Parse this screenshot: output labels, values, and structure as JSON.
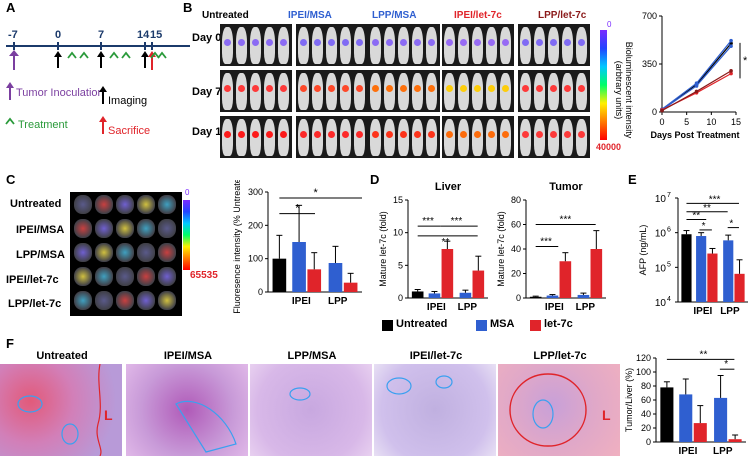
{
  "panel_labels": {
    "a": "A",
    "b": "B",
    "c": "C",
    "d": "D",
    "e": "E",
    "f": "F"
  },
  "panelA": {
    "ticks": [
      "-7",
      "0",
      "7",
      "14",
      "15"
    ],
    "legend": {
      "tumor": "Tumor Inoculation",
      "treatment": "Treatment",
      "imaging": "Imaging",
      "sacrifice": "Sacrifice"
    },
    "colors": {
      "tumor": "#7b3fa0",
      "treatment": "#2a9a3a",
      "imaging": "#000000",
      "sacrifice": "#e0242a"
    }
  },
  "panelB": {
    "groups": [
      "Untreated",
      "IPEI/MSA",
      "LPP/MSA",
      "IPEI/let-7c",
      "LPP/let-7c"
    ],
    "group_colors": [
      "#000000",
      "#2f5fd0",
      "#2f5fd0",
      "#e0242a",
      "#8b1a1a"
    ],
    "days": [
      "Day 0",
      "Day 7",
      "Day 14"
    ],
    "colorbar": {
      "label": "Bioluminescent intensity (arbtrary units)",
      "min": "0",
      "max": "40000"
    },
    "chart": {
      "xlabel": "Days Post Treatment",
      "yticks": [
        "0",
        "350",
        "700"
      ],
      "xticks": [
        "0",
        "5",
        "10",
        "15"
      ],
      "sig": "*"
    }
  },
  "panelC": {
    "rows": [
      "Untreated",
      "IPEI/MSA",
      "LPP/MSA",
      "IPEI/let-7c",
      "LPP/let-7c"
    ],
    "colorbar": {
      "min": "0",
      "max": "65535"
    },
    "chart": {
      "ylabel": "Fluoresence intensity (% Untreated)",
      "yticks": [
        "0",
        "100",
        "200",
        "300"
      ],
      "groups": [
        "IPEI",
        "LPP"
      ],
      "sig": [
        "*",
        "*"
      ]
    }
  },
  "panelD": {
    "liver_title": "Liver",
    "tumor_title": "Tumor",
    "ylabel": "Mature let-7c (fold)",
    "liver_yticks": [
      "0",
      "5",
      "10",
      "15"
    ],
    "tumor_yticks": [
      "0",
      "20",
      "40",
      "60",
      "80"
    ],
    "groups": [
      "IPEI",
      "LPP"
    ],
    "sig_liver": [
      "***",
      "***",
      "**"
    ],
    "sig_tumor": [
      "***",
      "***"
    ],
    "legend": [
      "Untreated",
      "MSA",
      "let-7c"
    ]
  },
  "panelE": {
    "ylabel": "AFP (ng/mL)",
    "yticks": [
      "10",
      "10",
      "10",
      "10"
    ],
    "yexp": [
      "7",
      "6",
      "5",
      "4"
    ],
    "groups": [
      "IPEI",
      "LPP"
    ],
    "sig": [
      "***",
      "**",
      "**",
      "*",
      "*"
    ]
  },
  "panelF": {
    "titles": [
      "Untreated",
      "IPEI/MSA",
      "LPP/MSA",
      "IPEI/let-7c",
      "LPP/let-7c"
    ],
    "marker": "L",
    "chart": {
      "ylabel": "Tumor/Liver (%)",
      "yticks": [
        "0",
        "20",
        "40",
        "60",
        "80",
        "100",
        "120"
      ],
      "groups": [
        "IPEI",
        "LPP"
      ],
      "sig": [
        "**",
        "*"
      ]
    }
  },
  "chart_data": [
    {
      "type": "line",
      "title": "",
      "xlabel": "Days Post Treatment",
      "ylabel": "",
      "x": [
        0,
        7,
        14
      ],
      "ylim": [
        0,
        700
      ],
      "series": [
        {
          "name": "Untreated",
          "color": "#000000",
          "values": [
            20,
            200,
            500
          ]
        },
        {
          "name": "IPEI/MSA",
          "color": "#2f5fd0",
          "values": [
            20,
            210,
            520
          ]
        },
        {
          "name": "LPP/MSA",
          "color": "#2f5fd0",
          "values": [
            15,
            190,
            480
          ]
        },
        {
          "name": "IPEI/let-7c",
          "color": "#e0242a",
          "values": [
            15,
            140,
            280
          ]
        },
        {
          "name": "LPP/let-7c",
          "color": "#8b1a1a",
          "values": [
            10,
            150,
            300
          ]
        }
      ]
    },
    {
      "type": "bar",
      "title": "",
      "ylabel": "Fluoresence intensity (% Untreated)",
      "ylim": [
        0,
        300
      ],
      "bars": [
        {
          "group": "Untreated",
          "color": "#000000",
          "value": 100,
          "err": 70
        },
        {
          "group": "IPEI",
          "color": "#2f5fd0",
          "value": 150,
          "err": 110
        },
        {
          "group": "IPEI",
          "color": "#e0242a",
          "value": 68,
          "err": 50
        },
        {
          "group": "LPP",
          "color": "#2f5fd0",
          "value": 87,
          "err": 50
        },
        {
          "group": "LPP",
          "color": "#e0242a",
          "value": 28,
          "err": 28
        }
      ]
    },
    {
      "type": "bar",
      "title": "Liver",
      "ylabel": "Mature let-7c (fold)",
      "ylim": [
        0,
        15
      ],
      "bars": [
        {
          "group": "Untreated",
          "color": "#000000",
          "value": 1.0,
          "err": 0.3
        },
        {
          "group": "IPEI",
          "color": "#2f5fd0",
          "value": 0.7,
          "err": 0.3
        },
        {
          "group": "IPEI",
          "color": "#e0242a",
          "value": 7.5,
          "err": 1.2
        },
        {
          "group": "LPP",
          "color": "#2f5fd0",
          "value": 0.8,
          "err": 0.4
        },
        {
          "group": "LPP",
          "color": "#e0242a",
          "value": 4.2,
          "err": 2.2
        }
      ]
    },
    {
      "type": "bar",
      "title": "Tumor",
      "ylabel": "Mature let-7c (fold)",
      "ylim": [
        0,
        80
      ],
      "bars": [
        {
          "group": "Untreated",
          "color": "#000000",
          "value": 1,
          "err": 0.5
        },
        {
          "group": "IPEI",
          "color": "#2f5fd0",
          "value": 2,
          "err": 0.8
        },
        {
          "group": "IPEI",
          "color": "#e0242a",
          "value": 30,
          "err": 7
        },
        {
          "group": "LPP",
          "color": "#2f5fd0",
          "value": 2.5,
          "err": 1.5
        },
        {
          "group": "LPP",
          "color": "#e0242a",
          "value": 40,
          "err": 15
        }
      ]
    },
    {
      "type": "bar",
      "title": "",
      "ylabel": "AFP (ng/mL)",
      "ylim": [
        10000,
        10000000
      ],
      "yscale": "log",
      "bars": [
        {
          "group": "Untreated",
          "color": "#000000",
          "value": 900000,
          "err": 250000
        },
        {
          "group": "IPEI",
          "color": "#2f5fd0",
          "value": 800000,
          "err": 200000
        },
        {
          "group": "IPEI",
          "color": "#e0242a",
          "value": 250000,
          "err": 100000
        },
        {
          "group": "LPP",
          "color": "#2f5fd0",
          "value": 600000,
          "err": 250000
        },
        {
          "group": "LPP",
          "color": "#e0242a",
          "value": 65000,
          "err": 100000
        }
      ]
    },
    {
      "type": "bar",
      "title": "",
      "ylabel": "Tumor/Liver (%)",
      "ylim": [
        0,
        120
      ],
      "bars": [
        {
          "group": "Untreated",
          "color": "#000000",
          "value": 78,
          "err": 8
        },
        {
          "group": "IPEI",
          "color": "#2f5fd0",
          "value": 68,
          "err": 22
        },
        {
          "group": "IPEI",
          "color": "#e0242a",
          "value": 27,
          "err": 25
        },
        {
          "group": "LPP",
          "color": "#2f5fd0",
          "value": 63,
          "err": 32
        },
        {
          "group": "LPP",
          "color": "#e0242a",
          "value": 4,
          "err": 6
        }
      ]
    }
  ]
}
